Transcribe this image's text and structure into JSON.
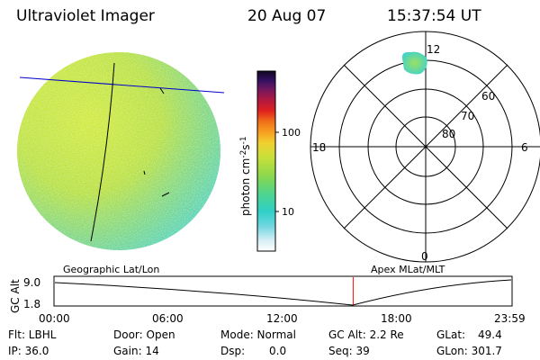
{
  "header": {
    "instrument": "Ultraviolet Imager",
    "date": "20 Aug 07",
    "time": "15:37:54 UT"
  },
  "image_panel": {
    "caption": "Geographic Lat/Lon"
  },
  "color_bar": {
    "unit_label": "photon cm",
    "unit_exp1": "-2",
    "unit_s": "s",
    "unit_exp2": "-1",
    "ticks": [
      "100",
      "10"
    ]
  },
  "polar_plot": {
    "caption": "Apex MLat/MLT",
    "mlt_labels": {
      "top": "12",
      "bottom": "0",
      "left": "18",
      "right": "6"
    },
    "lat_labels": [
      "60",
      "70",
      "80"
    ]
  },
  "altitude_plot": {
    "ylabel": "GC Alt",
    "y_ticks": [
      "9.0",
      "1.8"
    ],
    "x_ticks": [
      "00:00",
      "06:00",
      "12:00",
      "18:00",
      "23:59"
    ],
    "current_time_fraction": 0.653
  },
  "status": {
    "flt": "Flt: LBHL",
    "ip": "IP: 36.0",
    "door": "Door: Open",
    "gain": "Gain: 14",
    "mode": "Mode: Normal",
    "dsp_label": "Dsp:",
    "dsp_value": "0.0",
    "gc_alt": "GC Alt: 2.2 Re",
    "seq": "Seq: 39",
    "glat_label": "GLat:",
    "glat_value": "49.4",
    "glon": "GLon: 301.7"
  },
  "colors": {
    "meridian": "#0000cc",
    "cursor": "#ff0000",
    "foreground": "#000000"
  }
}
